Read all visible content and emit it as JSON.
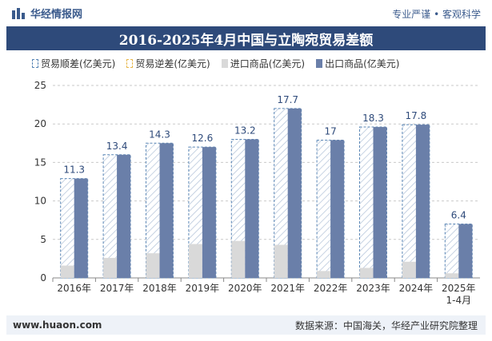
{
  "header": {
    "brand": "华经情报网",
    "tagline": "专业严谨 • 客观科学"
  },
  "footer": {
    "site": "www.huaon.com",
    "source": "数据来源：中国海关，华经产业研究院整理"
  },
  "colors": {
    "import": "#d9d9d9",
    "export": "#6a7fa9",
    "surplus_stroke": "#5b87b6",
    "deficit_stroke": "#e8b94f",
    "title_bg": "#2e4a7a"
  },
  "chart_data": {
    "type": "bar",
    "title": "2016-2025年4月中国与立陶宛贸易差额",
    "categories": [
      "2016年",
      "2017年",
      "2018年",
      "2019年",
      "2020年",
      "2021年",
      "2022年",
      "2023年",
      "2024年",
      "2025年 1-4月"
    ],
    "series": [
      {
        "name": "贸易顺差(亿美元)",
        "values": [
          11.3,
          13.4,
          14.3,
          12.6,
          13.2,
          17.7,
          17,
          18.3,
          17.8,
          6.4
        ]
      },
      {
        "name": "贸易逆差(亿美元)",
        "values": [
          0,
          0,
          0,
          0,
          0,
          0,
          0,
          0,
          0,
          0
        ]
      },
      {
        "name": "进口商品(亿美元)",
        "values": [
          1.6,
          2.6,
          3.2,
          4.4,
          4.8,
          4.3,
          0.9,
          1.3,
          2.1,
          0.6
        ]
      },
      {
        "name": "出口商品(亿美元)",
        "values": [
          12.9,
          16.0,
          17.5,
          17.0,
          18.0,
          22.0,
          17.9,
          19.6,
          19.9,
          7.0
        ]
      }
    ],
    "data_labels": [
      "11.3",
      "13.4",
      "14.3",
      "12.6",
      "13.2",
      "17.7",
      "17",
      "18.3",
      "17.8",
      "6.4"
    ],
    "y_ticks": [
      "0",
      "5",
      "10",
      "15",
      "20",
      "25"
    ],
    "ylim": [
      0,
      25
    ],
    "grid": "horizontal dashed",
    "legend_position": "top-left"
  }
}
